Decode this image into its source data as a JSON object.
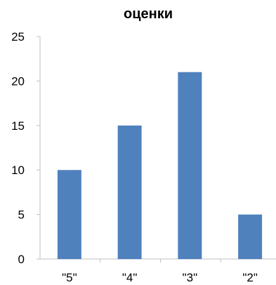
{
  "chart_data": {
    "type": "bar",
    "title": "оценки",
    "categories": [
      "\"5\"",
      "\"4\"",
      "\"3\"",
      "\"2\""
    ],
    "series": [
      {
        "values": [
          10,
          15,
          21,
          5
        ]
      }
    ],
    "ylim": [
      0,
      25
    ],
    "yticks": [
      "0",
      "5",
      "10",
      "15",
      "20",
      "25"
    ],
    "ytick_values": [
      0,
      5,
      10,
      15,
      20,
      25
    ],
    "grid": false,
    "legend": "none",
    "bar_color": "#4F81BD",
    "axis_color": "#BFBFBF"
  }
}
